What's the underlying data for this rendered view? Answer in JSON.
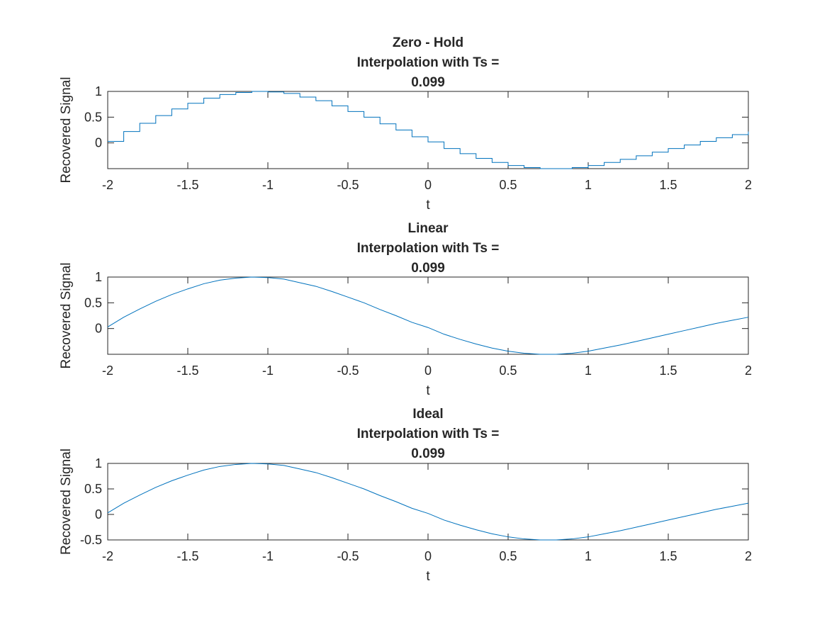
{
  "chart_data": [
    {
      "type": "line",
      "style": "step",
      "title": [
        "Zero - Hold",
        "Interpolation with Ts =",
        "0.099"
      ],
      "xlabel": "t",
      "ylabel": "Recovered Signal",
      "xlim": [
        -2,
        2
      ],
      "ylim": [
        -0.5,
        1
      ],
      "xticks": [
        -2,
        -1.5,
        -1,
        -0.5,
        0,
        0.5,
        1,
        1.5,
        2
      ],
      "xtick_labels": [
        "-2",
        "-1.5",
        "-1",
        "-0.5",
        "0",
        "0.5",
        "1",
        "1.5",
        "2"
      ],
      "yticks": [
        0,
        0.5,
        1
      ],
      "ytick_labels": [
        "0",
        "0.5",
        "1"
      ],
      "line_color": "#0072BD",
      "series": [
        {
          "x": [
            -2.0,
            -1.9,
            -1.8,
            -1.7,
            -1.6,
            -1.5,
            -1.4,
            -1.3,
            -1.2,
            -1.1,
            -1.0,
            -0.9,
            -0.8,
            -0.7,
            -0.6,
            -0.5,
            -0.4,
            -0.3,
            -0.2,
            -0.1,
            0.0,
            0.1,
            0.2,
            0.3,
            0.4,
            0.5,
            0.6,
            0.7,
            0.8,
            0.9,
            1.0,
            1.1,
            1.2,
            1.3,
            1.4,
            1.5,
            1.6,
            1.7,
            1.8,
            1.9,
            2.0
          ],
          "y": [
            0.03,
            0.22,
            0.38,
            0.53,
            0.66,
            0.77,
            0.87,
            0.94,
            0.98,
            1.0,
            0.99,
            0.96,
            0.89,
            0.82,
            0.72,
            0.61,
            0.5,
            0.37,
            0.25,
            0.12,
            0.02,
            -0.11,
            -0.21,
            -0.3,
            -0.38,
            -0.44,
            -0.48,
            -0.5,
            -0.5,
            -0.48,
            -0.44,
            -0.38,
            -0.32,
            -0.25,
            -0.18,
            -0.11,
            -0.04,
            0.03,
            0.1,
            0.16,
            0.22
          ]
        }
      ]
    },
    {
      "type": "line",
      "title": [
        "Linear",
        "Interpolation with Ts =",
        "0.099"
      ],
      "xlabel": "t",
      "ylabel": "Recovered Signal",
      "xlim": [
        -2,
        2
      ],
      "ylim": [
        -0.5,
        1
      ],
      "xticks": [
        -2,
        -1.5,
        -1,
        -0.5,
        0,
        0.5,
        1,
        1.5,
        2
      ],
      "xtick_labels": [
        "-2",
        "-1.5",
        "-1",
        "-0.5",
        "0",
        "0.5",
        "1",
        "1.5",
        "2"
      ],
      "yticks": [
        0,
        0.5,
        1
      ],
      "ytick_labels": [
        "0",
        "0.5",
        "1"
      ],
      "line_color": "#0072BD",
      "series": [
        {
          "x": [
            -2.0,
            -1.9,
            -1.8,
            -1.7,
            -1.6,
            -1.5,
            -1.4,
            -1.3,
            -1.2,
            -1.1,
            -1.0,
            -0.9,
            -0.8,
            -0.7,
            -0.6,
            -0.5,
            -0.4,
            -0.3,
            -0.2,
            -0.1,
            0.0,
            0.1,
            0.2,
            0.3,
            0.4,
            0.5,
            0.6,
            0.7,
            0.8,
            0.9,
            1.0,
            1.1,
            1.2,
            1.3,
            1.4,
            1.5,
            1.6,
            1.7,
            1.8,
            1.9,
            2.0
          ],
          "y": [
            0.03,
            0.22,
            0.38,
            0.53,
            0.66,
            0.77,
            0.87,
            0.94,
            0.98,
            1.0,
            0.99,
            0.96,
            0.89,
            0.82,
            0.72,
            0.61,
            0.5,
            0.37,
            0.25,
            0.12,
            0.02,
            -0.11,
            -0.21,
            -0.3,
            -0.38,
            -0.44,
            -0.48,
            -0.5,
            -0.5,
            -0.48,
            -0.44,
            -0.38,
            -0.32,
            -0.25,
            -0.18,
            -0.11,
            -0.04,
            0.03,
            0.1,
            0.16,
            0.22
          ]
        }
      ]
    },
    {
      "type": "line",
      "title": [
        "Ideal",
        "Interpolation with Ts =",
        "0.099"
      ],
      "xlabel": "t",
      "ylabel": "Recovered Signal",
      "xlim": [
        -2,
        2
      ],
      "ylim": [
        -0.5,
        1
      ],
      "xticks": [
        -2,
        -1.5,
        -1,
        -0.5,
        0,
        0.5,
        1,
        1.5,
        2
      ],
      "xtick_labels": [
        "-2",
        "-1.5",
        "-1",
        "-0.5",
        "0",
        "0.5",
        "1",
        "1.5",
        "2"
      ],
      "yticks": [
        -0.5,
        0,
        0.5,
        1
      ],
      "ytick_labels": [
        "-0.5",
        "0",
        "0.5",
        "1"
      ],
      "line_color": "#0072BD",
      "series": [
        {
          "x": [
            -2.0,
            -1.9,
            -1.8,
            -1.7,
            -1.6,
            -1.5,
            -1.4,
            -1.3,
            -1.2,
            -1.1,
            -1.0,
            -0.9,
            -0.8,
            -0.7,
            -0.6,
            -0.5,
            -0.4,
            -0.3,
            -0.2,
            -0.1,
            0.0,
            0.1,
            0.2,
            0.3,
            0.4,
            0.5,
            0.6,
            0.7,
            0.8,
            0.9,
            1.0,
            1.1,
            1.2,
            1.3,
            1.4,
            1.5,
            1.6,
            1.7,
            1.8,
            1.9,
            2.0
          ],
          "y": [
            0.03,
            0.22,
            0.38,
            0.53,
            0.66,
            0.77,
            0.87,
            0.94,
            0.98,
            1.0,
            0.99,
            0.96,
            0.89,
            0.82,
            0.72,
            0.61,
            0.5,
            0.37,
            0.25,
            0.12,
            0.02,
            -0.11,
            -0.21,
            -0.3,
            -0.38,
            -0.44,
            -0.48,
            -0.5,
            -0.5,
            -0.48,
            -0.44,
            -0.38,
            -0.32,
            -0.25,
            -0.18,
            -0.11,
            -0.04,
            0.03,
            0.1,
            0.16,
            0.22
          ]
        }
      ]
    }
  ]
}
